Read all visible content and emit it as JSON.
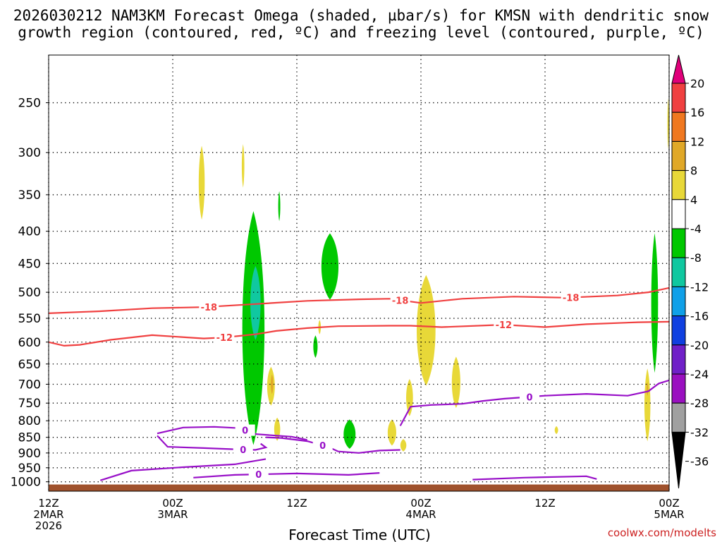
{
  "title_line1": "2026030212 NAM3KM Forecast Omega (shaded, µbar/s) for KMSN with dendritic snow",
  "title_line2": "growth region (contoured, red, ºC) and freezing level (contoured, purple, ºC)",
  "credit": "coolwx.com/modelts",
  "chart_data": {
    "type": "heatmap",
    "title": "2026030212 NAM3KM Forecast Omega (shaded, µbar/s) for KMSN with dendritic snow growth region (contoured, red, ºC) and freezing level (contoured, purple, ºC)",
    "xlabel": "Forecast Time (UTC)",
    "ylabel": "",
    "x_range_hours": [
      0,
      60
    ],
    "y_range_hpa": [
      210,
      1035
    ],
    "x_ticks": [
      {
        "h": 0,
        "lines": [
          "12Z",
          "2MAR",
          "2026"
        ]
      },
      {
        "h": 12,
        "lines": [
          "00Z",
          "3MAR"
        ]
      },
      {
        "h": 24,
        "lines": [
          "12Z"
        ]
      },
      {
        "h": 36,
        "lines": [
          "00Z",
          "4MAR"
        ]
      },
      {
        "h": 48,
        "lines": [
          "12Z"
        ]
      },
      {
        "h": 60,
        "lines": [
          "00Z",
          "5MAR"
        ]
      }
    ],
    "y_ticks": [
      250,
      300,
      350,
      400,
      450,
      500,
      550,
      600,
      650,
      700,
      750,
      800,
      850,
      900,
      950,
      1000
    ],
    "grid": true,
    "legend": {
      "position": "right",
      "levels": [
        "20",
        "16",
        "12",
        "8",
        "4",
        "-4",
        "-8",
        "-12",
        "-16",
        "-20",
        "-24",
        "-28",
        "-32",
        "-36"
      ],
      "colors": [
        "#e0007a",
        "#f04040",
        "#f07820",
        "#e0a828",
        "#e8d838",
        "#ffffff",
        "#00c800",
        "#10c8a0",
        "#10a0e8",
        "#1040e0",
        "#7020c8",
        "#9a10c0",
        "#a0a0a0",
        "#000000"
      ]
    },
    "ground_color": "#a0522d",
    "temperature_contours": [
      {
        "name": "-18",
        "color": "#f04040",
        "label_at_h": [
          15.5,
          34,
          50.5
        ],
        "points": [
          [
            0,
            540
          ],
          [
            5,
            536
          ],
          [
            10,
            530
          ],
          [
            15,
            528
          ],
          [
            20,
            522
          ],
          [
            25,
            516
          ],
          [
            30,
            513
          ],
          [
            33,
            512
          ],
          [
            36,
            520
          ],
          [
            40,
            512
          ],
          [
            45,
            508
          ],
          [
            50,
            510
          ],
          [
            55,
            506
          ],
          [
            58,
            500
          ],
          [
            60,
            492
          ]
        ]
      },
      {
        "name": "-12",
        "color": "#f04040",
        "label_at_h": [
          17,
          44
        ],
        "points": [
          [
            0,
            600
          ],
          [
            1.5,
            608
          ],
          [
            3,
            606
          ],
          [
            6,
            595
          ],
          [
            10,
            585
          ],
          [
            15,
            592
          ],
          [
            17,
            590
          ],
          [
            20,
            583
          ],
          [
            22,
            576
          ],
          [
            25,
            570
          ],
          [
            28,
            566
          ],
          [
            33,
            565
          ],
          [
            35,
            565
          ],
          [
            38,
            568
          ],
          [
            44,
            563
          ],
          [
            48,
            568
          ],
          [
            52,
            562
          ],
          [
            57,
            558
          ],
          [
            60,
            557
          ]
        ]
      },
      {
        "name": "0",
        "color": "#9810c8",
        "label_at_h": [
          46.5
        ],
        "points": [
          [
            34,
            815
          ],
          [
            35,
            760
          ],
          [
            37,
            755
          ],
          [
            40,
            752
          ],
          [
            42,
            744
          ],
          [
            44,
            738
          ],
          [
            46,
            734
          ],
          [
            48,
            730
          ],
          [
            52,
            725
          ],
          [
            56,
            730
          ],
          [
            58,
            718
          ],
          [
            59,
            698
          ],
          [
            60,
            690
          ]
        ]
      }
    ],
    "freezing_segments": [
      {
        "name": "0",
        "points": [
          [
            10.5,
            838
          ],
          [
            13,
            820
          ],
          [
            16,
            818
          ],
          [
            18.5,
            822
          ],
          [
            20,
            840
          ],
          [
            23.5,
            848
          ],
          [
            25,
            858
          ]
        ]
      },
      {
        "name": "0",
        "points": [
          [
            10.5,
            845
          ],
          [
            11.5,
            880
          ],
          [
            15,
            884
          ],
          [
            18,
            888
          ],
          [
            20,
            890
          ],
          [
            21,
            882
          ],
          [
            20.5,
            870
          ]
        ]
      },
      {
        "name": "0",
        "points": [
          [
            21,
            850
          ],
          [
            22.5,
            852
          ],
          [
            25,
            862
          ],
          [
            27,
            880
          ],
          [
            28,
            895
          ],
          [
            30,
            900
          ],
          [
            32,
            892
          ],
          [
            34,
            890
          ]
        ]
      },
      {
        "name": "0",
        "points": [
          [
            5,
            995
          ],
          [
            8,
            960
          ],
          [
            13,
            948
          ],
          [
            18,
            938
          ],
          [
            21,
            920
          ]
        ]
      },
      {
        "name": "0",
        "points": [
          [
            14,
            985
          ],
          [
            18,
            975
          ],
          [
            24,
            970
          ],
          [
            29,
            975
          ],
          [
            32,
            968
          ]
        ]
      },
      {
        "name": "0",
        "points": [
          [
            41,
            992
          ],
          [
            46,
            985
          ],
          [
            52,
            980
          ],
          [
            53,
            990
          ]
        ]
      }
    ],
    "omega_regions": [
      {
        "value": -8,
        "color": "#00c800",
        "center_h": 19.8,
        "center_hpa": 570,
        "h_halfwidth": 1.3,
        "hpa_halfheight": 230
      },
      {
        "value": -12,
        "color": "#10c8a0",
        "center_h": 20.0,
        "center_hpa": 520,
        "h_halfwidth": 0.6,
        "hpa_halfheight": 70
      },
      {
        "value": -8,
        "color": "#00c800",
        "center_h": 27.2,
        "center_hpa": 455,
        "h_halfwidth": 1.0,
        "hpa_halfheight": 55
      },
      {
        "value": -8,
        "color": "#00c800",
        "center_h": 29.1,
        "center_hpa": 840,
        "h_halfwidth": 0.7,
        "hpa_halfheight": 45
      },
      {
        "value": -8,
        "color": "#00c800",
        "center_h": 58.6,
        "center_hpa": 520,
        "h_halfwidth": 0.4,
        "hpa_halfheight": 130
      },
      {
        "value": -8,
        "color": "#00c800",
        "center_h": 22.3,
        "center_hpa": 365,
        "h_halfwidth": 0.12,
        "hpa_halfheight": 20
      },
      {
        "value": -8,
        "color": "#00c800",
        "center_h": 25.8,
        "center_hpa": 610,
        "h_halfwidth": 0.25,
        "hpa_halfheight": 25
      },
      {
        "value": 4,
        "color": "#e8d838",
        "center_h": 14.8,
        "center_hpa": 335,
        "h_halfwidth": 0.35,
        "hpa_halfheight": 45
      },
      {
        "value": 4,
        "color": "#e8d838",
        "center_h": 18.8,
        "center_hpa": 315,
        "h_halfwidth": 0.15,
        "hpa_halfheight": 25
      },
      {
        "value": 4,
        "color": "#e8d838",
        "center_h": 21.5,
        "center_hpa": 705,
        "h_halfwidth": 0.45,
        "hpa_halfheight": 50
      },
      {
        "value": 4,
        "color": "#e8d838",
        "center_h": 22.1,
        "center_hpa": 825,
        "h_halfwidth": 0.35,
        "hpa_halfheight": 35
      },
      {
        "value": 4,
        "color": "#e8d838",
        "center_h": 26.2,
        "center_hpa": 568,
        "h_halfwidth": 0.15,
        "hpa_halfheight": 15
      },
      {
        "value": 4,
        "color": "#e8d838",
        "center_h": 36.5,
        "center_hpa": 575,
        "h_halfwidth": 1.1,
        "hpa_halfheight": 115
      },
      {
        "value": 4,
        "color": "#e8d838",
        "center_h": 34.9,
        "center_hpa": 735,
        "h_halfwidth": 0.4,
        "hpa_halfheight": 50
      },
      {
        "value": 4,
        "color": "#e8d838",
        "center_h": 33.2,
        "center_hpa": 835,
        "h_halfwidth": 0.5,
        "hpa_halfheight": 40
      },
      {
        "value": 4,
        "color": "#e8d838",
        "center_h": 34.3,
        "center_hpa": 875,
        "h_halfwidth": 0.35,
        "hpa_halfheight": 20
      },
      {
        "value": 4,
        "color": "#e8d838",
        "center_h": 39.4,
        "center_hpa": 695,
        "h_halfwidth": 0.5,
        "hpa_halfheight": 65
      },
      {
        "value": 4,
        "color": "#e8d838",
        "center_h": 49.1,
        "center_hpa": 828,
        "h_halfwidth": 0.2,
        "hpa_halfheight": 12
      },
      {
        "value": 4,
        "color": "#e8d838",
        "center_h": 57.9,
        "center_hpa": 755,
        "h_halfwidth": 0.35,
        "hpa_halfheight": 100
      },
      {
        "value": 4,
        "color": "#e8d838",
        "center_h": 59.9,
        "center_hpa": 270,
        "h_halfwidth": 0.08,
        "hpa_halfheight": 25
      },
      {
        "value": 8,
        "color": "#e0a828",
        "center_h": 21.6,
        "center_hpa": 700,
        "h_halfwidth": 0.15,
        "hpa_halfheight": 25
      },
      {
        "value": 8,
        "color": "#e0a828",
        "center_h": 57.9,
        "center_hpa": 712,
        "h_halfwidth": 0.1,
        "hpa_halfheight": 18
      }
    ]
  }
}
